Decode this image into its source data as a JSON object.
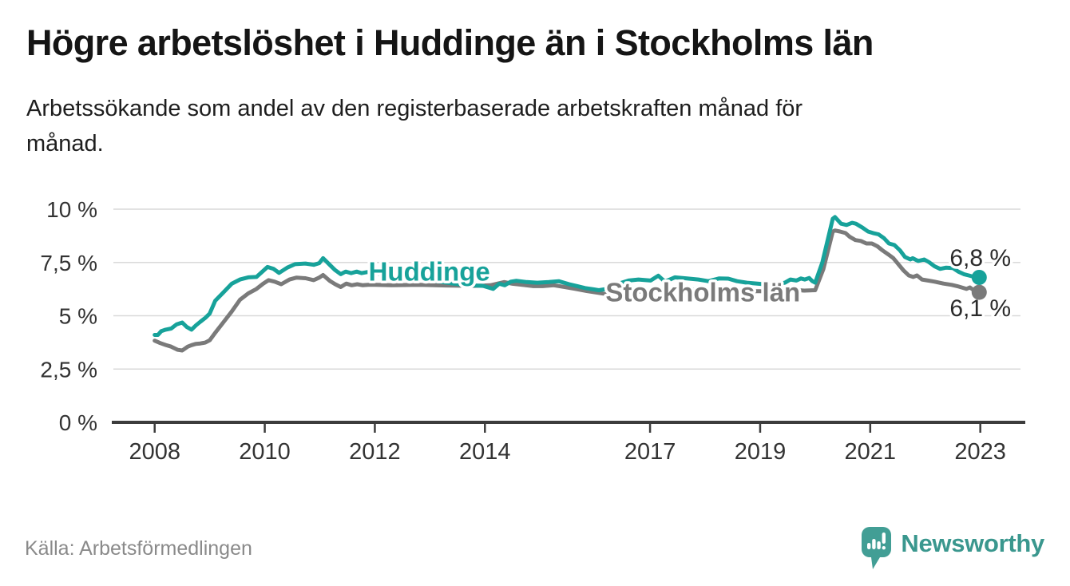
{
  "footer": {
    "source": "Källa: Arbetsförmedlingen",
    "logo_text": "Newsworthy",
    "logo_color": "#429e95"
  },
  "chart_data": {
    "type": "line",
    "title": "Högre arbetslöshet i Huddinge än i Stockholms län",
    "subtitle_lines": [
      "Arbetssökande som andel av den registerbaserade arbetskraften månad för",
      "månad."
    ],
    "xlabel": "",
    "ylabel": "",
    "unit": "%",
    "grid": "horizontal",
    "legend_position": "inline-labels",
    "xlim": [
      2007.25,
      2023.73
    ],
    "ylim": [
      0,
      10
    ],
    "x_ticks": [
      {
        "year": 2008,
        "label": "2008"
      },
      {
        "year": 2010,
        "label": "2010"
      },
      {
        "year": 2012,
        "label": "2012"
      },
      {
        "year": 2014,
        "label": "2014"
      },
      {
        "year": 2017,
        "label": "2017"
      },
      {
        "year": 2019,
        "label": "2019"
      },
      {
        "year": 2021,
        "label": "2021"
      },
      {
        "year": 2023,
        "label": "2023"
      }
    ],
    "y_ticks": [
      {
        "value": 0,
        "label": "0 %"
      },
      {
        "value": 2.5,
        "label": "2,5 %"
      },
      {
        "value": 5,
        "label": "5 %"
      },
      {
        "value": 7.5,
        "label": "7,5 %"
      },
      {
        "value": 10,
        "label": "10 %"
      }
    ],
    "series": [
      {
        "name": "Stockholms län",
        "color": "#7a7a7a",
        "end_label": "6,1 %",
        "end_value": 6.1,
        "points": [
          [
            2008.0,
            3.83
          ],
          [
            2008.1,
            3.72
          ],
          [
            2008.2,
            3.63
          ],
          [
            2008.3,
            3.55
          ],
          [
            2008.42,
            3.4
          ],
          [
            2008.5,
            3.37
          ],
          [
            2008.6,
            3.55
          ],
          [
            2008.67,
            3.62
          ],
          [
            2008.75,
            3.68
          ],
          [
            2008.83,
            3.7
          ],
          [
            2008.92,
            3.74
          ],
          [
            2009.0,
            3.85
          ],
          [
            2009.1,
            4.2
          ],
          [
            2009.25,
            4.7
          ],
          [
            2009.4,
            5.2
          ],
          [
            2009.55,
            5.75
          ],
          [
            2009.7,
            6.05
          ],
          [
            2009.85,
            6.26
          ],
          [
            2009.97,
            6.5
          ],
          [
            2010.07,
            6.67
          ],
          [
            2010.18,
            6.6
          ],
          [
            2010.3,
            6.48
          ],
          [
            2010.45,
            6.7
          ],
          [
            2010.58,
            6.79
          ],
          [
            2010.74,
            6.76
          ],
          [
            2010.89,
            6.67
          ],
          [
            2010.99,
            6.79
          ],
          [
            2011.06,
            6.91
          ],
          [
            2011.18,
            6.64
          ],
          [
            2011.28,
            6.48
          ],
          [
            2011.38,
            6.35
          ],
          [
            2011.48,
            6.51
          ],
          [
            2011.58,
            6.43
          ],
          [
            2011.68,
            6.48
          ],
          [
            2011.78,
            6.43
          ],
          [
            2011.88,
            6.45
          ],
          [
            2012.01,
            6.45
          ],
          [
            2012.3,
            6.43
          ],
          [
            2012.8,
            6.45
          ],
          [
            2013.3,
            6.42
          ],
          [
            2013.8,
            6.4
          ],
          [
            2014.1,
            6.43
          ],
          [
            2014.35,
            6.58
          ],
          [
            2014.5,
            6.5
          ],
          [
            2014.68,
            6.45
          ],
          [
            2014.88,
            6.39
          ],
          [
            2015.05,
            6.39
          ],
          [
            2015.25,
            6.43
          ],
          [
            2015.45,
            6.35
          ],
          [
            2015.65,
            6.26
          ],
          [
            2015.85,
            6.16
          ],
          [
            2016.05,
            6.08
          ],
          [
            2016.2,
            6.02
          ],
          [
            2016.6,
            6.08
          ],
          [
            2017.0,
            6.18
          ],
          [
            2017.5,
            6.25
          ],
          [
            2018.0,
            6.2
          ],
          [
            2018.5,
            6.15
          ],
          [
            2019.0,
            6.15
          ],
          [
            2019.4,
            6.1
          ],
          [
            2019.66,
            6.21
          ],
          [
            2019.8,
            6.18
          ],
          [
            2020.0,
            6.2
          ],
          [
            2020.15,
            7.2
          ],
          [
            2020.32,
            8.95
          ],
          [
            2020.36,
            9.0
          ],
          [
            2020.45,
            8.95
          ],
          [
            2020.55,
            8.88
          ],
          [
            2020.63,
            8.7
          ],
          [
            2020.73,
            8.55
          ],
          [
            2020.83,
            8.51
          ],
          [
            2020.93,
            8.39
          ],
          [
            2021.03,
            8.39
          ],
          [
            2021.13,
            8.26
          ],
          [
            2021.22,
            8.07
          ],
          [
            2021.32,
            7.89
          ],
          [
            2021.42,
            7.7
          ],
          [
            2021.5,
            7.45
          ],
          [
            2021.6,
            7.14
          ],
          [
            2021.7,
            6.89
          ],
          [
            2021.78,
            6.82
          ],
          [
            2021.85,
            6.89
          ],
          [
            2021.94,
            6.7
          ],
          [
            2022.05,
            6.65
          ],
          [
            2022.17,
            6.6
          ],
          [
            2022.33,
            6.51
          ],
          [
            2022.48,
            6.45
          ],
          [
            2022.58,
            6.39
          ],
          [
            2022.66,
            6.33
          ],
          [
            2022.75,
            6.26
          ],
          [
            2022.81,
            6.33
          ],
          [
            2022.88,
            6.2
          ],
          [
            2022.93,
            6.17
          ],
          [
            2022.98,
            6.1
          ]
        ]
      },
      {
        "name": "Huddinge",
        "color": "#17a29a",
        "end_label": "6,8 %",
        "end_value": 6.8,
        "points": [
          [
            2008.0,
            4.1
          ],
          [
            2008.06,
            4.1
          ],
          [
            2008.12,
            4.28
          ],
          [
            2008.2,
            4.35
          ],
          [
            2008.3,
            4.4
          ],
          [
            2008.4,
            4.6
          ],
          [
            2008.5,
            4.68
          ],
          [
            2008.58,
            4.48
          ],
          [
            2008.67,
            4.35
          ],
          [
            2008.75,
            4.55
          ],
          [
            2008.83,
            4.72
          ],
          [
            2008.92,
            4.9
          ],
          [
            2009.0,
            5.1
          ],
          [
            2009.1,
            5.7
          ],
          [
            2009.25,
            6.1
          ],
          [
            2009.4,
            6.5
          ],
          [
            2009.55,
            6.7
          ],
          [
            2009.7,
            6.8
          ],
          [
            2009.85,
            6.82
          ],
          [
            2009.97,
            7.1
          ],
          [
            2010.05,
            7.29
          ],
          [
            2010.16,
            7.2
          ],
          [
            2010.26,
            7.01
          ],
          [
            2010.41,
            7.26
          ],
          [
            2010.55,
            7.42
          ],
          [
            2010.74,
            7.45
          ],
          [
            2010.89,
            7.39
          ],
          [
            2010.99,
            7.47
          ],
          [
            2011.06,
            7.7
          ],
          [
            2011.18,
            7.39
          ],
          [
            2011.28,
            7.14
          ],
          [
            2011.38,
            6.95
          ],
          [
            2011.47,
            7.07
          ],
          [
            2011.57,
            7.0
          ],
          [
            2011.67,
            7.07
          ],
          [
            2011.76,
            7.0
          ],
          [
            2011.86,
            7.05
          ],
          [
            2012.01,
            7.0
          ],
          [
            2012.44,
            6.85
          ],
          [
            2013.02,
            6.65
          ],
          [
            2013.6,
            6.45
          ],
          [
            2013.97,
            6.4
          ],
          [
            2014.15,
            6.26
          ],
          [
            2014.26,
            6.5
          ],
          [
            2014.36,
            6.43
          ],
          [
            2014.47,
            6.6
          ],
          [
            2014.57,
            6.64
          ],
          [
            2014.76,
            6.58
          ],
          [
            2014.95,
            6.55
          ],
          [
            2015.16,
            6.58
          ],
          [
            2015.34,
            6.62
          ],
          [
            2015.53,
            6.48
          ],
          [
            2015.68,
            6.39
          ],
          [
            2015.82,
            6.3
          ],
          [
            2015.97,
            6.24
          ],
          [
            2016.07,
            6.2
          ],
          [
            2016.17,
            6.24
          ],
          [
            2016.36,
            6.45
          ],
          [
            2016.61,
            6.65
          ],
          [
            2016.79,
            6.7
          ],
          [
            2017.01,
            6.65
          ],
          [
            2017.15,
            6.88
          ],
          [
            2017.27,
            6.6
          ],
          [
            2017.45,
            6.8
          ],
          [
            2017.67,
            6.75
          ],
          [
            2017.88,
            6.7
          ],
          [
            2018.06,
            6.62
          ],
          [
            2018.25,
            6.75
          ],
          [
            2018.42,
            6.74
          ],
          [
            2018.58,
            6.62
          ],
          [
            2018.76,
            6.55
          ],
          [
            2018.97,
            6.5
          ],
          [
            2019.19,
            6.45
          ],
          [
            2019.34,
            6.5
          ],
          [
            2019.45,
            6.55
          ],
          [
            2019.55,
            6.7
          ],
          [
            2019.66,
            6.65
          ],
          [
            2019.74,
            6.75
          ],
          [
            2019.81,
            6.7
          ],
          [
            2019.89,
            6.77
          ],
          [
            2019.95,
            6.62
          ],
          [
            2020.0,
            6.55
          ],
          [
            2020.13,
            7.5
          ],
          [
            2020.32,
            9.55
          ],
          [
            2020.36,
            9.63
          ],
          [
            2020.47,
            9.32
          ],
          [
            2020.57,
            9.26
          ],
          [
            2020.67,
            9.36
          ],
          [
            2020.74,
            9.32
          ],
          [
            2020.86,
            9.13
          ],
          [
            2020.96,
            8.95
          ],
          [
            2021.05,
            8.88
          ],
          [
            2021.15,
            8.82
          ],
          [
            2021.25,
            8.64
          ],
          [
            2021.34,
            8.39
          ],
          [
            2021.44,
            8.32
          ],
          [
            2021.54,
            8.07
          ],
          [
            2021.63,
            7.76
          ],
          [
            2021.73,
            7.64
          ],
          [
            2021.77,
            7.7
          ],
          [
            2021.87,
            7.57
          ],
          [
            2021.98,
            7.64
          ],
          [
            2022.07,
            7.51
          ],
          [
            2022.17,
            7.32
          ],
          [
            2022.27,
            7.2
          ],
          [
            2022.38,
            7.26
          ],
          [
            2022.5,
            7.24
          ],
          [
            2022.6,
            7.07
          ],
          [
            2022.7,
            6.95
          ],
          [
            2022.79,
            6.89
          ],
          [
            2022.89,
            6.82
          ],
          [
            2022.98,
            6.8
          ]
        ]
      }
    ],
    "annotations": [
      {
        "text": "Huddinge",
        "year": 2012.99,
        "value": 7.08,
        "color": "#17a29a",
        "weight": "bold",
        "size": 33,
        "halo": true
      },
      {
        "text": "Stockholms län",
        "year": 2017.96,
        "value": 6.1,
        "color": "#7a7a7a",
        "weight": "bold",
        "size": 33,
        "halo": true
      },
      {
        "text": "6,8 %",
        "year": 2023.0,
        "value": 7.73,
        "color": "#2b2b2b",
        "weight": "normal",
        "size": 30,
        "halo": true
      },
      {
        "text": "6,1 %",
        "year": 2023.0,
        "value": 5.38,
        "color": "#2b2b2b",
        "weight": "normal",
        "size": 30,
        "halo": true
      }
    ],
    "style": {
      "grid_color": "#d9d9d9",
      "axis_color": "#3c3c3c",
      "tick_label_color": "#333333",
      "line_width": 5,
      "end_dot_radius": 9.5
    }
  }
}
